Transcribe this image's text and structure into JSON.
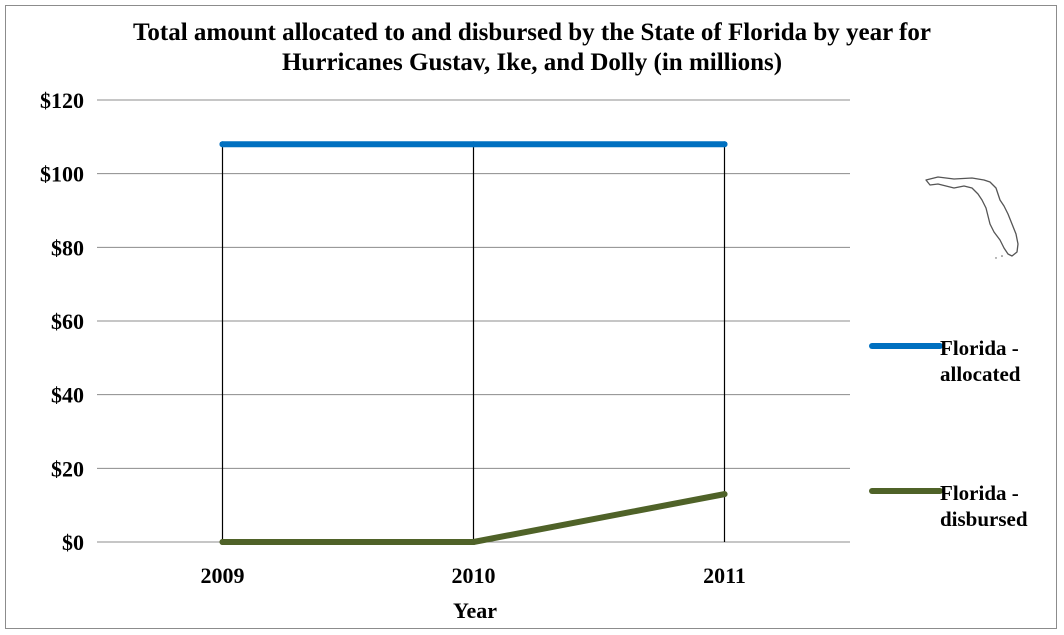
{
  "chart_data": {
    "type": "line",
    "title_lines": [
      "Total amount allocated to and disbursed by the State of Florida by year for",
      "Hurricanes Gustav, Ike, and Dolly (in millions)"
    ],
    "xlabel": "Year",
    "ylabel": "",
    "categories": [
      "2009",
      "2010",
      "2011"
    ],
    "ylim": [
      0,
      120
    ],
    "yticks": [
      0,
      20,
      40,
      60,
      80,
      100,
      120
    ],
    "ytick_labels": [
      "$0",
      "$20",
      "$40",
      "$60",
      "$80",
      "$100",
      "$120"
    ],
    "grid": "horizontal",
    "legend_position": "right",
    "series": [
      {
        "name_lines": [
          "Florida -",
          "allocated"
        ],
        "values": [
          108,
          108,
          108
        ],
        "color": "#0070c0"
      },
      {
        "name_lines": [
          "Florida -",
          "disbursed"
        ],
        "values": [
          0,
          0,
          13
        ],
        "color": "#4f6228"
      }
    ]
  },
  "decoration": {
    "icon": "florida-map-icon"
  }
}
